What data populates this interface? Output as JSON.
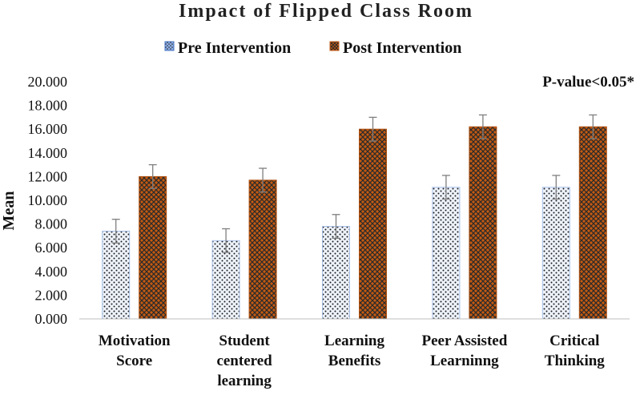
{
  "chart_data": {
    "type": "bar",
    "title": "Impact of Flipped Class Room",
    "ylabel": "Mean",
    "xlabel": "",
    "ylim": [
      0,
      20
    ],
    "yticks": [
      "0.000",
      "2.000",
      "4.000",
      "6.000",
      "8.000",
      "10.000",
      "12.000",
      "14.000",
      "16.000",
      "18.000",
      "20.000"
    ],
    "categories": [
      [
        "Motivation",
        "Score"
      ],
      [
        "Student",
        "centered",
        "learning"
      ],
      [
        "Learning",
        "Benefits"
      ],
      [
        "Peer Assisted",
        "Learninng"
      ],
      [
        "Critical",
        "Thinking"
      ]
    ],
    "series": [
      {
        "name": "Pre Intervention",
        "values": [
          7.4,
          6.6,
          7.8,
          11.1,
          11.1
        ],
        "error": [
          1.0,
          1.0,
          1.0,
          1.0,
          1.0
        ],
        "color": "#4472c4"
      },
      {
        "name": "Post Intervention",
        "values": [
          12.0,
          11.7,
          16.0,
          16.2,
          16.2
        ],
        "error": [
          1.0,
          1.0,
          1.0,
          1.0,
          1.0
        ],
        "color": "#c55a11"
      }
    ],
    "annotation": "P-value<0.05*",
    "legend_position": "top",
    "grid": false
  }
}
